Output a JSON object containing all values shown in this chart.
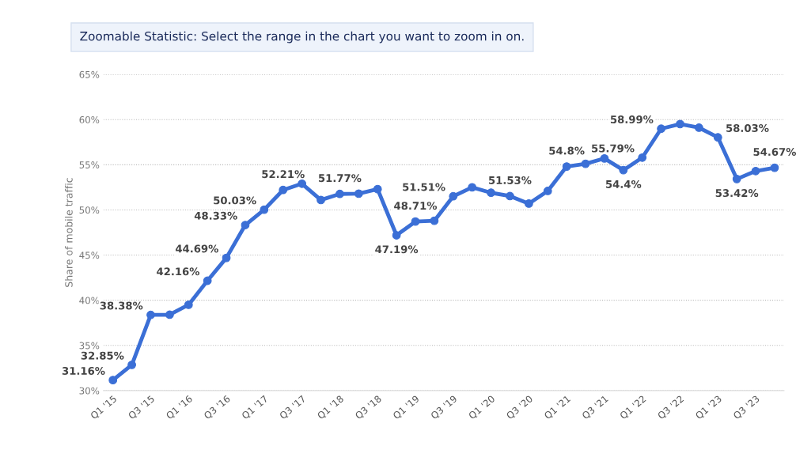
{
  "chart_data": {
    "type": "line",
    "annotations": [
      "Zoomable Statistic: Select the range in the chart you want to zoom in on."
    ],
    "ylabel": "Share of mobile traffic",
    "categories": [
      "Q1 '15",
      null,
      "Q3 '15",
      null,
      "Q1 '16",
      null,
      "Q3 '16",
      null,
      "Q1 '17",
      null,
      "Q3 '17",
      null,
      "Q1 '18",
      null,
      "Q3 '18",
      null,
      "Q1 '19",
      null,
      "Q3 '19",
      null,
      "Q1 '20",
      null,
      "Q3 '20",
      null,
      "Q1 '21",
      null,
      "Q3 '21",
      null,
      "Q1 '22",
      null,
      "Q3 '22",
      null,
      "Q1 '23",
      null,
      "Q3 '23",
      null
    ],
    "series": [
      {
        "color": "#3b6fd6",
        "values": [
          31.16,
          32.85,
          38.38,
          38.4,
          39.5,
          42.16,
          44.69,
          48.33,
          50.03,
          52.21,
          52.9,
          51.1,
          51.77,
          51.8,
          52.3,
          47.19,
          48.71,
          48.8,
          51.51,
          52.5,
          51.9,
          51.53,
          50.7,
          52.1,
          54.8,
          55.1,
          55.7,
          54.4,
          55.79,
          58.99,
          59.5,
          59.1,
          58.03,
          53.42,
          54.3,
          54.67
        ],
        "value_labels": [
          "31.16%",
          "32.85%",
          "38.38%",
          null,
          null,
          "42.16%",
          "44.69%",
          "48.33%",
          "50.03%",
          "52.21%",
          null,
          null,
          "51.77%",
          null,
          null,
          "47.19%",
          "48.71%",
          null,
          "51.51%",
          null,
          null,
          "51.53%",
          null,
          null,
          "54.8%",
          null,
          null,
          "54.4%",
          "55.79%",
          "58.99%",
          null,
          null,
          "58.03%",
          "53.42%",
          null,
          "54.67%"
        ]
      }
    ],
    "ylim": [
      30,
      65
    ],
    "yticks": [
      {
        "value": 30,
        "label": "30%"
      },
      {
        "value": 35,
        "label": "35%"
      },
      {
        "value": 40,
        "label": "40%"
      },
      {
        "value": 45,
        "label": "45%"
      },
      {
        "value": 50,
        "label": "50%"
      },
      {
        "value": 55,
        "label": "55%"
      },
      {
        "value": 60,
        "label": "60%"
      },
      {
        "value": 65,
        "label": "65%"
      }
    ],
    "grid": "y",
    "marker": "circle",
    "line_style": "solid",
    "legend": false
  }
}
